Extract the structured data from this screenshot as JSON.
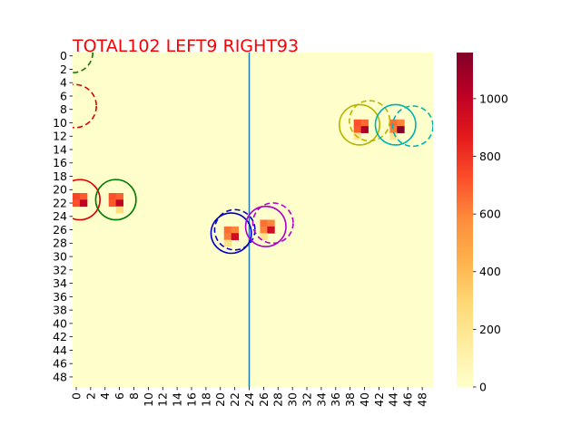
{
  "chart_data": {
    "type": "heatmap",
    "title": "TOTAL102  LEFT9 RIGHT93",
    "title_color": "#ff0000",
    "grid_size": 50,
    "xlabel": "",
    "ylabel": "",
    "x_ticks": [
      0,
      2,
      4,
      6,
      8,
      10,
      12,
      14,
      16,
      18,
      20,
      22,
      24,
      26,
      28,
      30,
      32,
      34,
      36,
      38,
      40,
      42,
      44,
      46,
      48
    ],
    "y_ticks": [
      0,
      2,
      4,
      6,
      8,
      10,
      12,
      14,
      16,
      18,
      20,
      22,
      24,
      26,
      28,
      30,
      32,
      34,
      36,
      38,
      40,
      42,
      44,
      46,
      48
    ],
    "colormap": "YlOrRd",
    "vmin": 0,
    "vmax": 1160,
    "colorbar_ticks": [
      0,
      200,
      400,
      600,
      800,
      1000
    ],
    "background_value": 0,
    "cells": [
      {
        "x": 0,
        "y": 21,
        "value": 750
      },
      {
        "x": 1,
        "y": 21,
        "value": 700
      },
      {
        "x": 0,
        "y": 22,
        "value": 720
      },
      {
        "x": 1,
        "y": 22,
        "value": 1000
      },
      {
        "x": 5,
        "y": 21,
        "value": 720
      },
      {
        "x": 6,
        "y": 21,
        "value": 680
      },
      {
        "x": 5,
        "y": 22,
        "value": 700
      },
      {
        "x": 6,
        "y": 22,
        "value": 1000
      },
      {
        "x": 6,
        "y": 23,
        "value": 260
      },
      {
        "x": 21,
        "y": 26,
        "value": 650
      },
      {
        "x": 22,
        "y": 26,
        "value": 600
      },
      {
        "x": 21,
        "y": 27,
        "value": 620
      },
      {
        "x": 22,
        "y": 27,
        "value": 950
      },
      {
        "x": 21,
        "y": 28,
        "value": 220
      },
      {
        "x": 26,
        "y": 25,
        "value": 650
      },
      {
        "x": 27,
        "y": 25,
        "value": 600
      },
      {
        "x": 26,
        "y": 26,
        "value": 600
      },
      {
        "x": 27,
        "y": 26,
        "value": 950
      },
      {
        "x": 26,
        "y": 27,
        "value": 220
      },
      {
        "x": 39,
        "y": 10,
        "value": 720
      },
      {
        "x": 40,
        "y": 10,
        "value": 660
      },
      {
        "x": 39,
        "y": 11,
        "value": 700
      },
      {
        "x": 40,
        "y": 11,
        "value": 1050
      },
      {
        "x": 39,
        "y": 12,
        "value": 200
      },
      {
        "x": 44,
        "y": 10,
        "value": 650
      },
      {
        "x": 45,
        "y": 10,
        "value": 600
      },
      {
        "x": 44,
        "y": 11,
        "value": 620
      },
      {
        "x": 45,
        "y": 11,
        "value": 1160
      },
      {
        "x": 44,
        "y": 12,
        "value": 200
      }
    ],
    "vertical_line": {
      "x": 24.5,
      "color": "#1f77b4"
    },
    "circles": [
      {
        "cx": 1.0,
        "cy": 22.0,
        "r": 2.8,
        "color": "#dd0000",
        "dashed": false
      },
      {
        "cx": 0.3,
        "cy": 8.0,
        "r": 3.0,
        "color": "#dd0000",
        "dashed": true
      },
      {
        "cx": 6.0,
        "cy": 22.0,
        "r": 2.8,
        "color": "#007a00",
        "dashed": false
      },
      {
        "cx": 0.0,
        "cy": 0.0,
        "r": 2.8,
        "color": "#007a00",
        "dashed": true
      },
      {
        "cx": 22.0,
        "cy": 27.0,
        "r": 2.8,
        "color": "#0000cc",
        "dashed": false
      },
      {
        "cx": 22.5,
        "cy": 26.5,
        "r": 2.8,
        "color": "#0000cc",
        "dashed": true
      },
      {
        "cx": 26.8,
        "cy": 26.0,
        "r": 2.8,
        "color": "#b000cc",
        "dashed": false
      },
      {
        "cx": 27.8,
        "cy": 25.5,
        "r": 2.8,
        "color": "#b000cc",
        "dashed": true
      },
      {
        "cx": 39.8,
        "cy": 10.8,
        "r": 2.8,
        "color": "#b5b500",
        "dashed": false
      },
      {
        "cx": 41.2,
        "cy": 10.2,
        "r": 2.8,
        "color": "#b5b500",
        "dashed": true
      },
      {
        "cx": 44.8,
        "cy": 10.8,
        "r": 2.8,
        "color": "#00b3b3",
        "dashed": false
      },
      {
        "cx": 47.2,
        "cy": 11.0,
        "r": 2.8,
        "color": "#00b3b3",
        "dashed": true
      }
    ]
  }
}
